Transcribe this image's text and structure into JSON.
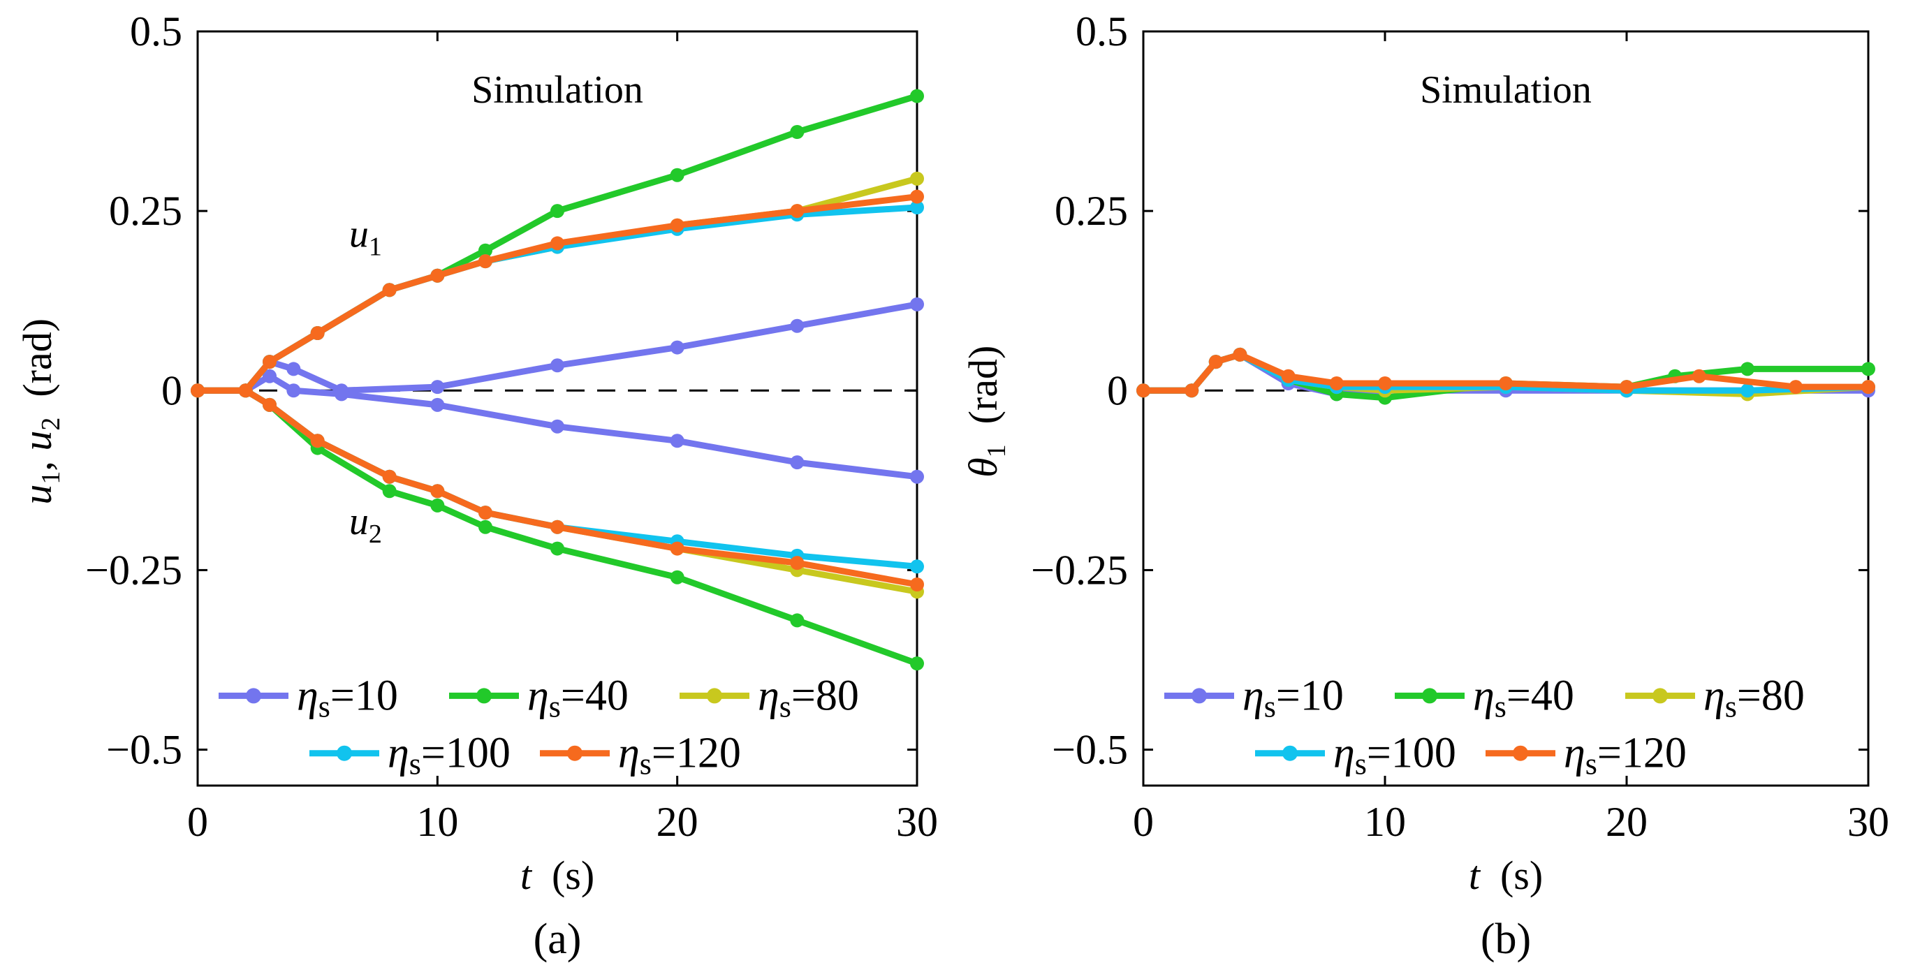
{
  "chart_data": [
    {
      "type": "line",
      "panel": "a",
      "panel_label": "(a)",
      "title": "Simulation",
      "xlabel": {
        "symbol": "t",
        "unit": "(s)"
      },
      "ylabel": {
        "symbol1": "u",
        "sub1": "1",
        "sep": ",",
        "symbol2": "u",
        "sub2": "2",
        "unit": "(rad)"
      },
      "xlim": [
        0,
        30
      ],
      "ylim": [
        -0.55,
        0.5
      ],
      "xticks": [
        0,
        10,
        20,
        30
      ],
      "yticks": [
        0.5,
        0.25,
        0,
        -0.25,
        -0.5
      ],
      "xtick_labels": [
        "0",
        "10",
        "20",
        "30"
      ],
      "ytick_labels": [
        "0.5",
        "0.25",
        "0",
        "−0.25",
        "−0.5"
      ],
      "annotations": [
        {
          "symbol": "u",
          "sub": "1",
          "x": 7,
          "y": 0.2
        },
        {
          "symbol": "u",
          "sub": "2",
          "x": 7,
          "y": -0.2
        }
      ],
      "series": [
        {
          "name": "ηs=10",
          "color": "#7375EE",
          "curves": [
            {
              "x": [
                0,
                2,
                3,
                4,
                6,
                10,
                15,
                20,
                25,
                30
              ],
              "y": [
                0,
                0,
                0.04,
                0.03,
                0,
                0.005,
                0.035,
                0.06,
                0.09,
                0.12
              ]
            },
            {
              "x": [
                0,
                2,
                3,
                4,
                6,
                10,
                15,
                20,
                25,
                30
              ],
              "y": [
                0,
                0,
                0.02,
                0,
                -0.005,
                -0.02,
                -0.05,
                -0.07,
                -0.1,
                -0.12
              ]
            }
          ]
        },
        {
          "name": "ηs=40",
          "color": "#22C92A",
          "curves": [
            {
              "x": [
                0,
                2,
                3,
                5,
                8,
                10,
                12,
                15,
                20,
                25,
                30
              ],
              "y": [
                0,
                0,
                0.04,
                0.08,
                0.14,
                0.16,
                0.195,
                0.25,
                0.3,
                0.36,
                0.41
              ]
            },
            {
              "x": [
                0,
                2,
                3,
                5,
                8,
                10,
                12,
                15,
                20,
                25,
                30
              ],
              "y": [
                0,
                0,
                -0.02,
                -0.08,
                -0.14,
                -0.16,
                -0.19,
                -0.22,
                -0.26,
                -0.32,
                -0.38
              ]
            }
          ]
        },
        {
          "name": "ηs=80",
          "color": "#C8C81E",
          "curves": [
            {
              "x": [
                0,
                2,
                3,
                5,
                8,
                10,
                12,
                15,
                20,
                25,
                30
              ],
              "y": [
                0,
                0,
                0.04,
                0.08,
                0.14,
                0.16,
                0.18,
                0.2,
                0.23,
                0.25,
                0.295
              ]
            },
            {
              "x": [
                0,
                2,
                3,
                5,
                8,
                10,
                12,
                15,
                20,
                25,
                30
              ],
              "y": [
                0,
                0,
                -0.02,
                -0.07,
                -0.12,
                -0.14,
                -0.17,
                -0.19,
                -0.22,
                -0.25,
                -0.28
              ]
            }
          ]
        },
        {
          "name": "ηs=100",
          "color": "#11C3EE",
          "curves": [
            {
              "x": [
                0,
                2,
                3,
                5,
                8,
                10,
                12,
                15,
                20,
                25,
                30
              ],
              "y": [
                0,
                0,
                0.04,
                0.08,
                0.14,
                0.16,
                0.18,
                0.2,
                0.225,
                0.245,
                0.255
              ]
            },
            {
              "x": [
                0,
                2,
                3,
                5,
                8,
                10,
                12,
                15,
                20,
                25,
                30
              ],
              "y": [
                0,
                0,
                -0.02,
                -0.07,
                -0.12,
                -0.14,
                -0.17,
                -0.19,
                -0.21,
                -0.23,
                -0.245
              ]
            }
          ]
        },
        {
          "name": "ηs=120",
          "color": "#F66A1E",
          "curves": [
            {
              "x": [
                0,
                2,
                3,
                5,
                8,
                10,
                12,
                15,
                20,
                25,
                30
              ],
              "y": [
                0,
                0,
                0.04,
                0.08,
                0.14,
                0.16,
                0.18,
                0.205,
                0.23,
                0.25,
                0.27
              ]
            },
            {
              "x": [
                0,
                2,
                3,
                5,
                8,
                10,
                12,
                15,
                20,
                25,
                30
              ],
              "y": [
                0,
                0,
                -0.02,
                -0.07,
                -0.12,
                -0.14,
                -0.17,
                -0.19,
                -0.22,
                -0.24,
                -0.27
              ]
            }
          ]
        }
      ],
      "legend": {
        "placement": "bottom",
        "entries": [
          {
            "greek": "η",
            "sub": "s",
            "value": "=10",
            "color": "#7375EE"
          },
          {
            "greek": "η",
            "sub": "s",
            "value": "=40",
            "color": "#22C92A"
          },
          {
            "greek": "η",
            "sub": "s",
            "value": "=80",
            "color": "#C8C81E"
          },
          {
            "greek": "η",
            "sub": "s",
            "value": "=100",
            "color": "#11C3EE"
          },
          {
            "greek": "η",
            "sub": "s",
            "value": "=120",
            "color": "#F66A1E"
          }
        ]
      }
    },
    {
      "type": "line",
      "panel": "b",
      "panel_label": "(b)",
      "title": "Simulation",
      "xlabel": {
        "symbol": "t",
        "unit": "(s)"
      },
      "ylabel": {
        "symbol1": "θ",
        "sub1": "1",
        "unit": "(rad)"
      },
      "xlim": [
        0,
        30
      ],
      "ylim": [
        -0.55,
        0.5
      ],
      "xticks": [
        0,
        10,
        20,
        30
      ],
      "yticks": [
        0.5,
        0.25,
        0,
        -0.25,
        -0.5
      ],
      "xtick_labels": [
        "0",
        "10",
        "20",
        "30"
      ],
      "ytick_labels": [
        "0.5",
        "0.25",
        "0",
        "−0.25",
        "−0.5"
      ],
      "series": [
        {
          "name": "ηs=10",
          "color": "#7375EE",
          "curves": [
            {
              "x": [
                0,
                2,
                3,
                4,
                6,
                8,
                10,
                15,
                20,
                25,
                30
              ],
              "y": [
                0,
                0,
                0.04,
                0.05,
                0.01,
                -0.005,
                0,
                0,
                0,
                0,
                0
              ]
            }
          ]
        },
        {
          "name": "ηs=40",
          "color": "#22C92A",
          "curves": [
            {
              "x": [
                0,
                2,
                3,
                4,
                6,
                8,
                10,
                15,
                20,
                22,
                25,
                30
              ],
              "y": [
                0,
                0,
                0.04,
                0.05,
                0.015,
                -0.005,
                -0.01,
                0.01,
                0.005,
                0.02,
                0.03,
                0.03
              ]
            }
          ]
        },
        {
          "name": "ηs=80",
          "color": "#C8C81E",
          "curves": [
            {
              "x": [
                0,
                2,
                3,
                4,
                6,
                8,
                10,
                15,
                20,
                25,
                30
              ],
              "y": [
                0,
                0,
                0.04,
                0.05,
                0.015,
                0.005,
                0,
                0.005,
                0,
                -0.005,
                0.005
              ]
            }
          ]
        },
        {
          "name": "ηs=100",
          "color": "#11C3EE",
          "curves": [
            {
              "x": [
                0,
                2,
                3,
                4,
                6,
                8,
                10,
                15,
                20,
                25,
                30
              ],
              "y": [
                0,
                0,
                0.04,
                0.05,
                0.015,
                0.005,
                0.005,
                0.005,
                0,
                0,
                0.005
              ]
            }
          ]
        },
        {
          "name": "ηs=120",
          "color": "#F66A1E",
          "curves": [
            {
              "x": [
                0,
                2,
                3,
                4,
                6,
                8,
                10,
                15,
                20,
                23,
                27,
                30
              ],
              "y": [
                0,
                0,
                0.04,
                0.05,
                0.02,
                0.01,
                0.01,
                0.01,
                0.005,
                0.02,
                0.005,
                0.005
              ]
            }
          ]
        }
      ],
      "legend": {
        "placement": "bottom",
        "entries": [
          {
            "greek": "η",
            "sub": "s",
            "value": "=10",
            "color": "#7375EE"
          },
          {
            "greek": "η",
            "sub": "s",
            "value": "=40",
            "color": "#22C92A"
          },
          {
            "greek": "η",
            "sub": "s",
            "value": "=80",
            "color": "#C8C81E"
          },
          {
            "greek": "η",
            "sub": "s",
            "value": "=100",
            "color": "#11C3EE"
          },
          {
            "greek": "η",
            "sub": "s",
            "value": "=120",
            "color": "#F66A1E"
          }
        ]
      }
    }
  ]
}
